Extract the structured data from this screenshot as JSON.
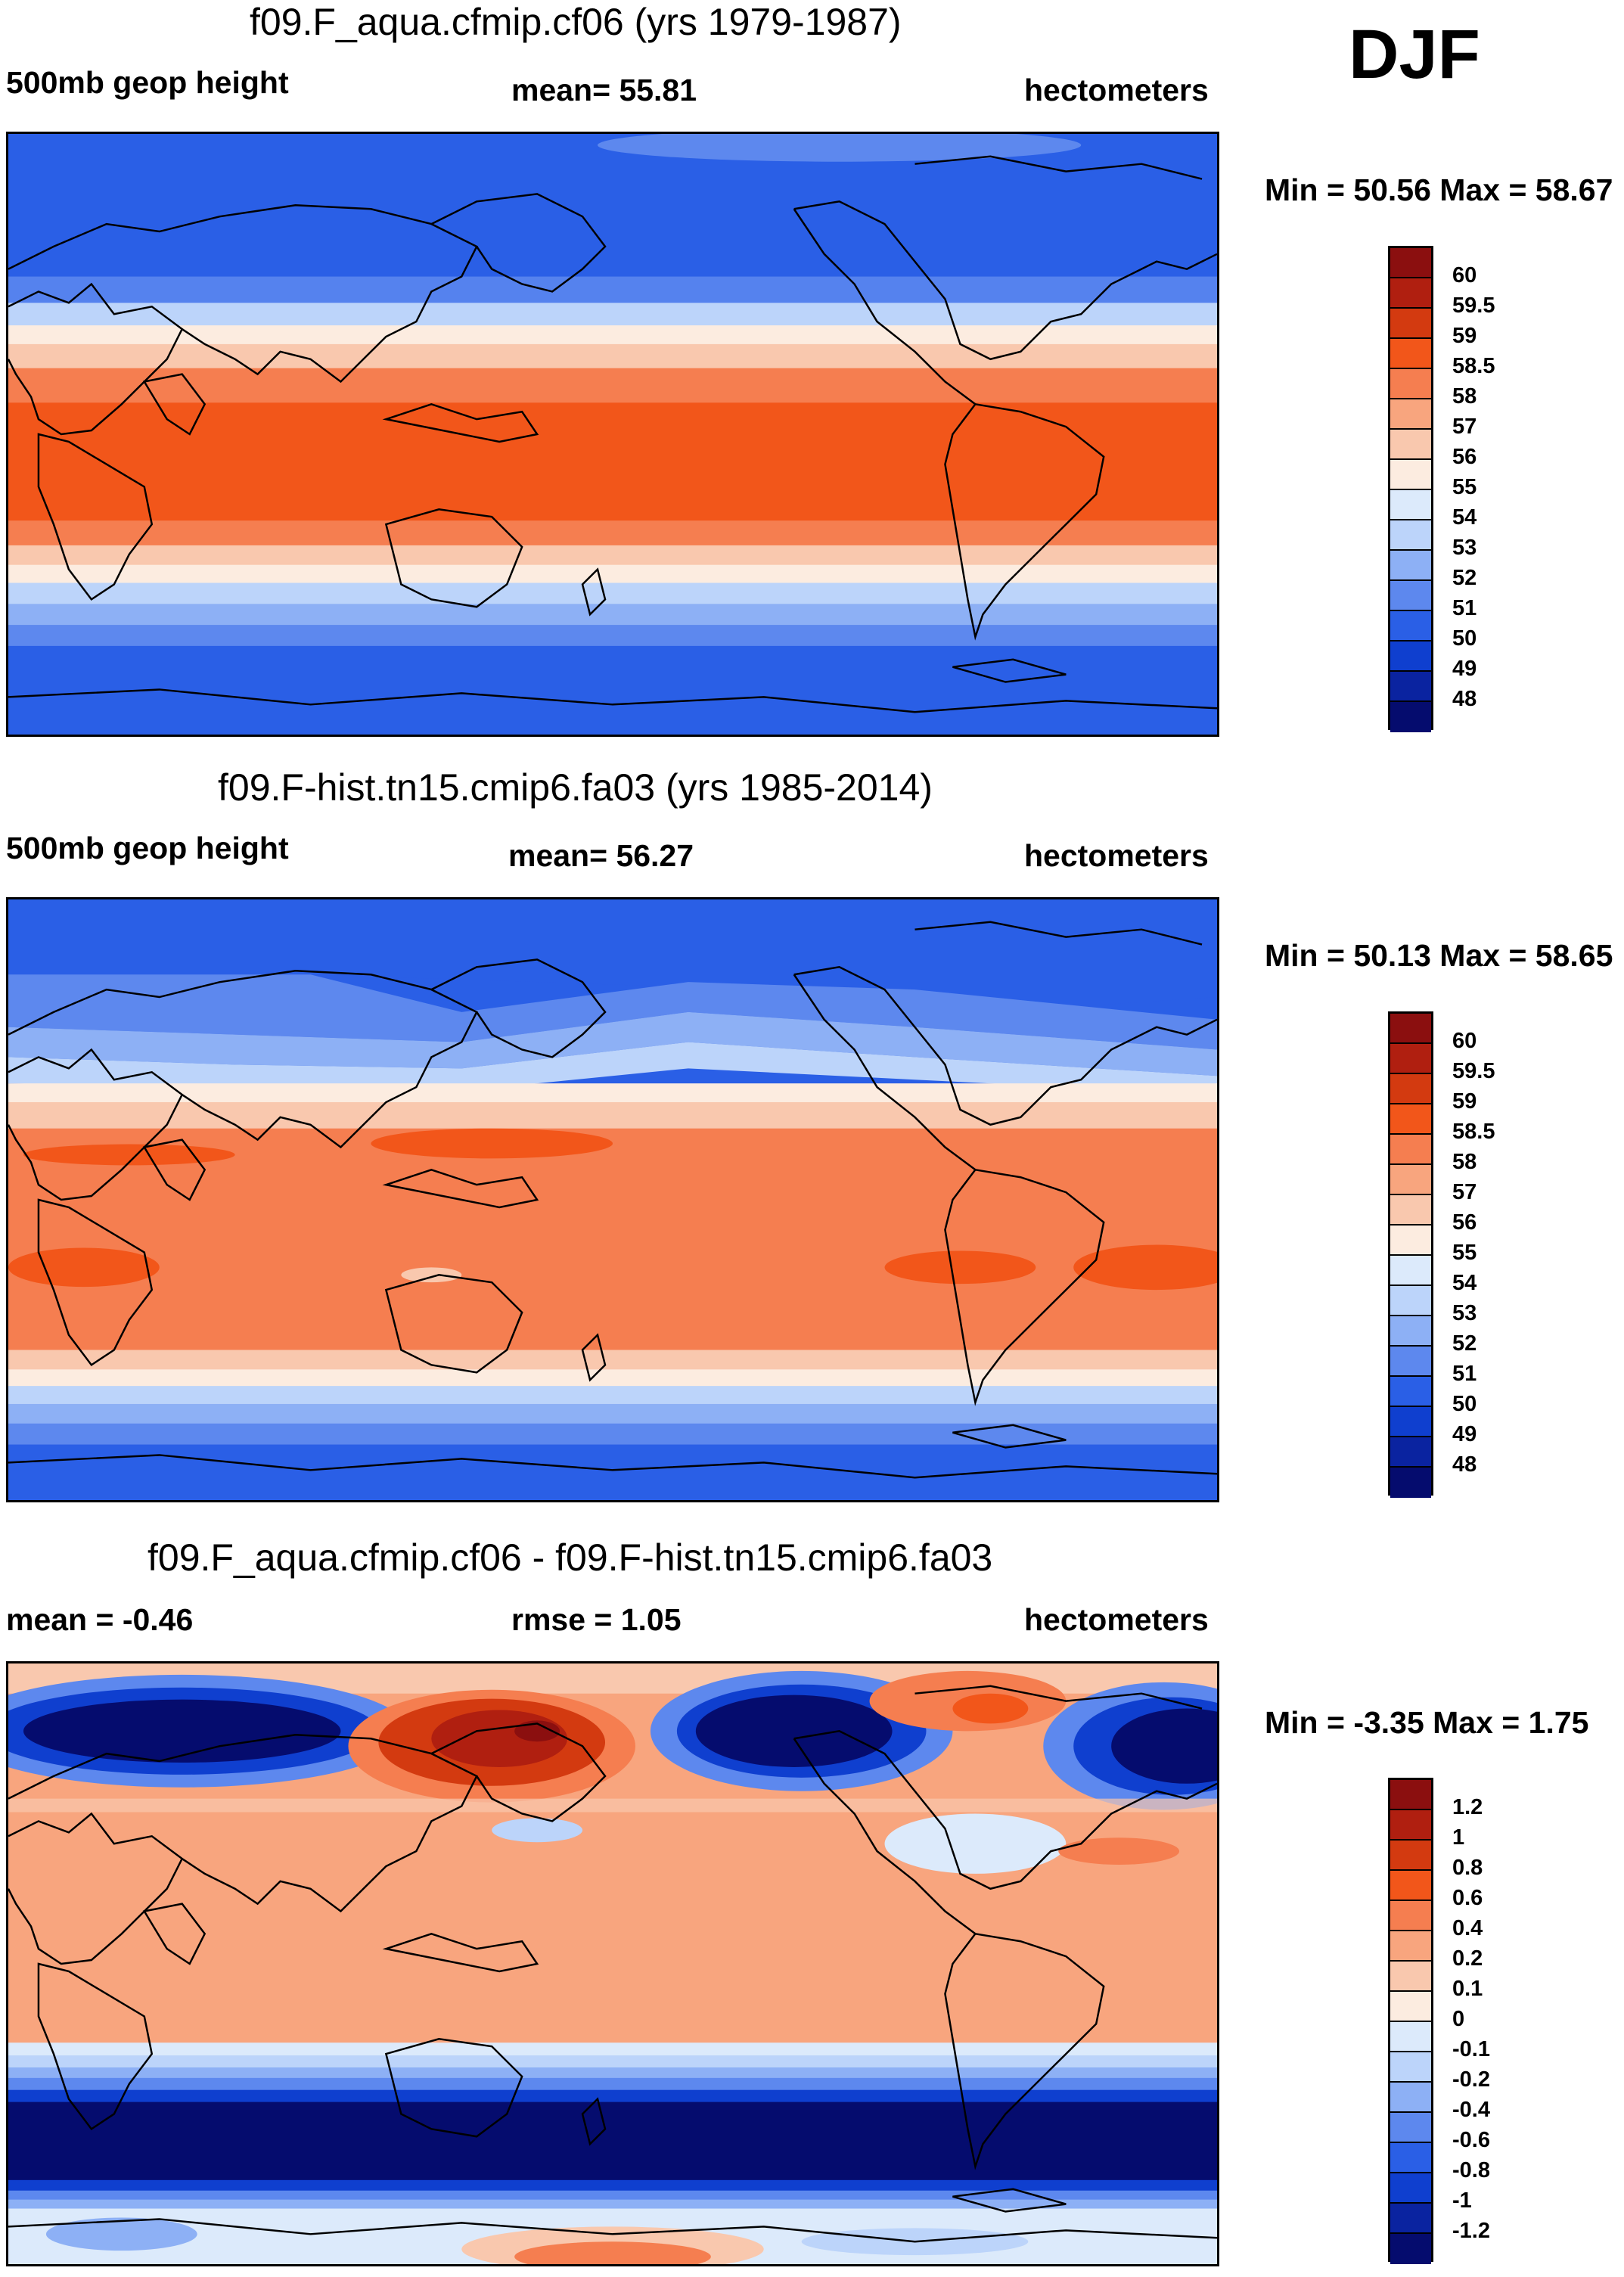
{
  "season": "DJF",
  "panels": [
    {
      "title": "f09.F_aqua.cfmip.cf06 (yrs 1979-1987)",
      "left_label": "500mb geop height",
      "center_label": "mean=  55.81",
      "right_label": "hectometers",
      "minmax": "Min =  50.56 Max =  58.67",
      "colorbar": {
        "colors": [
          "#8b0f0f",
          "#b01f10",
          "#d33a10",
          "#f2561a",
          "#f57e50",
          "#f8a57e",
          "#f9c8ae",
          "#fcece0",
          "#dceafb",
          "#bcd4fa",
          "#8db0f5",
          "#5d88ee",
          "#2a5fe6",
          "#0f3fcf",
          "#0a23a0",
          "#050c6e"
        ],
        "ticks": [
          "60",
          "59.5",
          "59",
          "58.5",
          "58",
          "57",
          "56",
          "55",
          "54",
          "53",
          "52",
          "51",
          "50",
          "49",
          "48"
        ]
      }
    },
    {
      "title": "f09.F-hist.tn15.cmip6.fa03 (yrs 1985-2014)",
      "left_label": "500mb geop height",
      "center_label": "mean=  56.27",
      "right_label": "hectometers",
      "minmax": "Min =  50.13 Max =  58.65",
      "colorbar": {
        "colors": [
          "#8b0f0f",
          "#b01f10",
          "#d33a10",
          "#f2561a",
          "#f57e50",
          "#f8a57e",
          "#f9c8ae",
          "#fcece0",
          "#dceafb",
          "#bcd4fa",
          "#8db0f5",
          "#5d88ee",
          "#2a5fe6",
          "#0f3fcf",
          "#0a23a0",
          "#050c6e"
        ],
        "ticks": [
          "60",
          "59.5",
          "59",
          "58.5",
          "58",
          "57",
          "56",
          "55",
          "54",
          "53",
          "52",
          "51",
          "50",
          "49",
          "48"
        ]
      }
    },
    {
      "title": "f09.F_aqua.cfmip.cf06 - f09.F-hist.tn15.cmip6.fa03",
      "left_label": "mean =  -0.46",
      "center_label": "rmse =   1.05",
      "right_label": "hectometers",
      "minmax": "Min =  -3.35 Max =   1.75",
      "colorbar": {
        "colors": [
          "#8b0f0f",
          "#b01f10",
          "#d33a10",
          "#f2561a",
          "#f57e50",
          "#f8a57e",
          "#f9c8ae",
          "#fcece0",
          "#dceafb",
          "#bcd4fa",
          "#8db0f5",
          "#5d88ee",
          "#2a5fe6",
          "#0f3fcf",
          "#0a23a0",
          "#050c6e"
        ],
        "ticks": [
          "1.2",
          "1",
          "0.8",
          "0.6",
          "0.4",
          "0.2",
          "0.1",
          "0",
          "-0.1",
          "-0.2",
          "-0.4",
          "-0.6",
          "-0.8",
          "-1",
          "-1.2"
        ]
      }
    }
  ]
}
